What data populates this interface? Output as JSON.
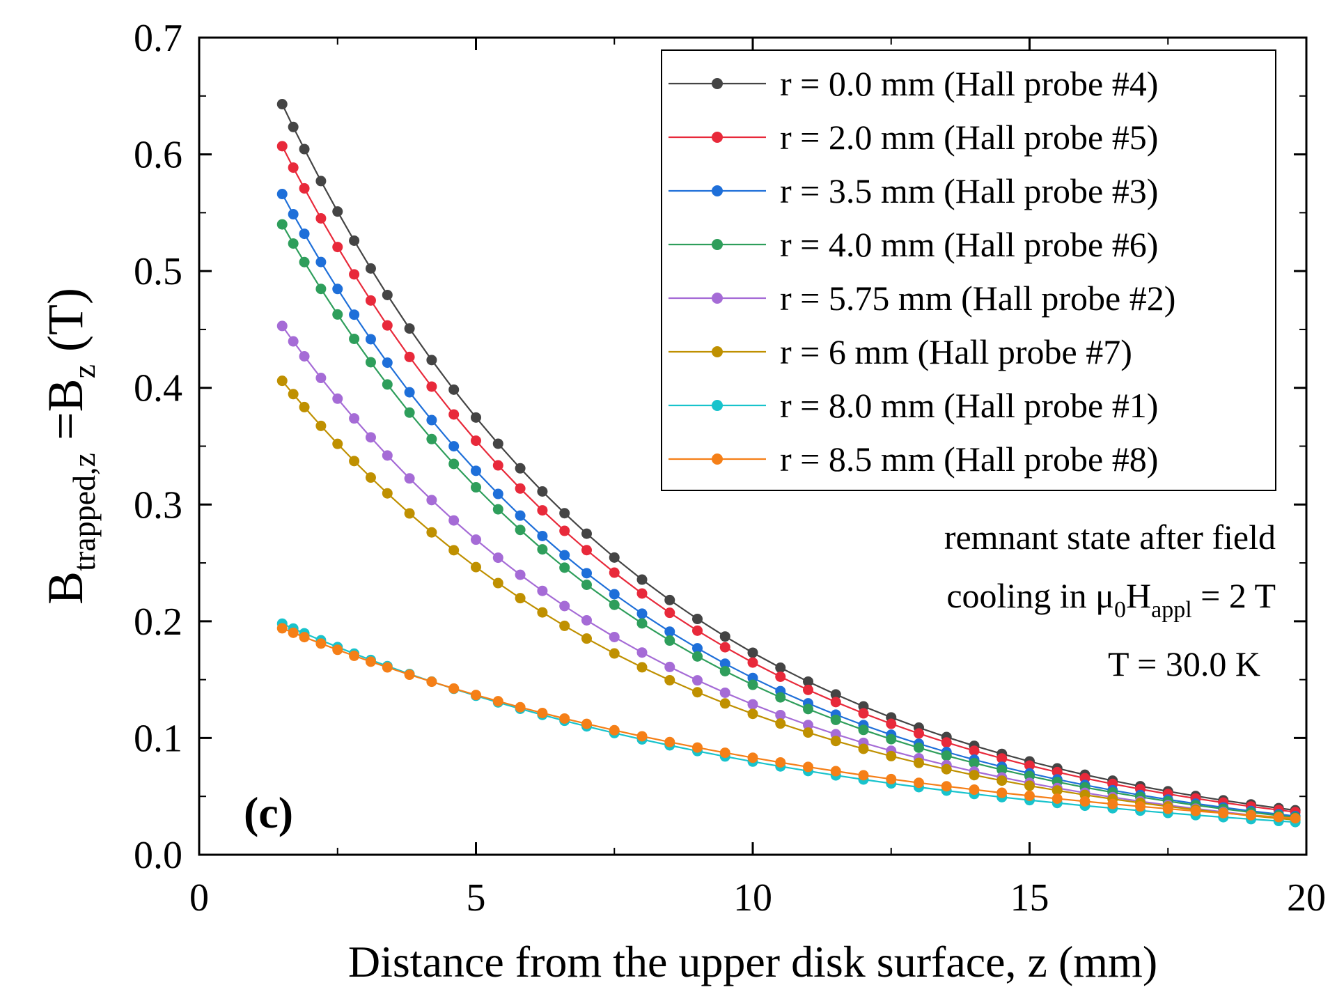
{
  "chart_data": {
    "type": "line",
    "panel_label": "(c)",
    "xlabel": "Distance from the upper disk surface, z (mm)",
    "ylabel": {
      "main": "B",
      "sub1": "trapped,z",
      "mid": " =B",
      "sub2": "z",
      "unit": " (T)"
    },
    "xlim": [
      0,
      20
    ],
    "ylim": [
      0,
      0.7
    ],
    "xticks": [
      "0",
      "5",
      "10",
      "15",
      "20"
    ],
    "yticks": [
      "0.0",
      "0.1",
      "0.2",
      "0.3",
      "0.4",
      "0.5",
      "0.6",
      "0.7"
    ],
    "legend_position": "top-right",
    "annotation": {
      "line1": "remnant state after field",
      "line2_prefix": "cooling in μ",
      "line2_sub1": "0",
      "line2_mid": "H",
      "line2_sub2": "appl",
      "line2_suffix": " = 2 T",
      "line3": "T = 30.0 K"
    },
    "x": [
      1.5,
      1.7,
      1.9,
      2.2,
      2.5,
      2.8,
      3.1,
      3.4,
      3.8,
      4.2,
      4.6,
      5.0,
      5.4,
      5.8,
      6.2,
      6.6,
      7.0,
      7.5,
      8.0,
      8.5,
      9.0,
      9.5,
      10.0,
      10.5,
      11.0,
      11.5,
      12.0,
      12.5,
      13.0,
      13.5,
      14.0,
      14.5,
      15.0,
      15.5,
      16.0,
      16.5,
      17.0,
      17.5,
      18.0,
      18.5,
      19.0,
      19.5,
      19.8
    ],
    "series": [
      {
        "name": "r = 0.0 mm (Hall probe #4)",
        "color": "#444444",
        "p0": 0.643,
        "decay": 0.1544
      },
      {
        "name": "r = 2.0 mm (Hall probe #5)",
        "color": "#e8293a",
        "p0": 0.607,
        "decay": 0.1535
      },
      {
        "name": "r = 3.5 mm (Hall probe #3)",
        "color": "#1e6fd9",
        "p0": 0.566,
        "decay": 0.1551
      },
      {
        "name": "r = 4.0 mm (Hall probe #6)",
        "color": "#2e9e5b",
        "p0": 0.54,
        "decay": 0.1542
      },
      {
        "name": "r = 5.75 mm (Hall probe #2)",
        "color": "#a56bd6",
        "p0": 0.453,
        "decay": 0.1479
      },
      {
        "name": "r = 6 mm (Hall probe #7)",
        "color": "#bf9000",
        "p0": 0.406,
        "decay": 0.1427
      },
      {
        "name": "r = 8.0 mm (Hall probe #1)",
        "color": "#18c3cc",
        "p0": 0.198,
        "decay": 0.1069
      },
      {
        "name": "r = 8.5 mm (Hall probe #8)",
        "color": "#f57f17",
        "p0": 0.194,
        "decay": 0.0997
      }
    ]
  }
}
